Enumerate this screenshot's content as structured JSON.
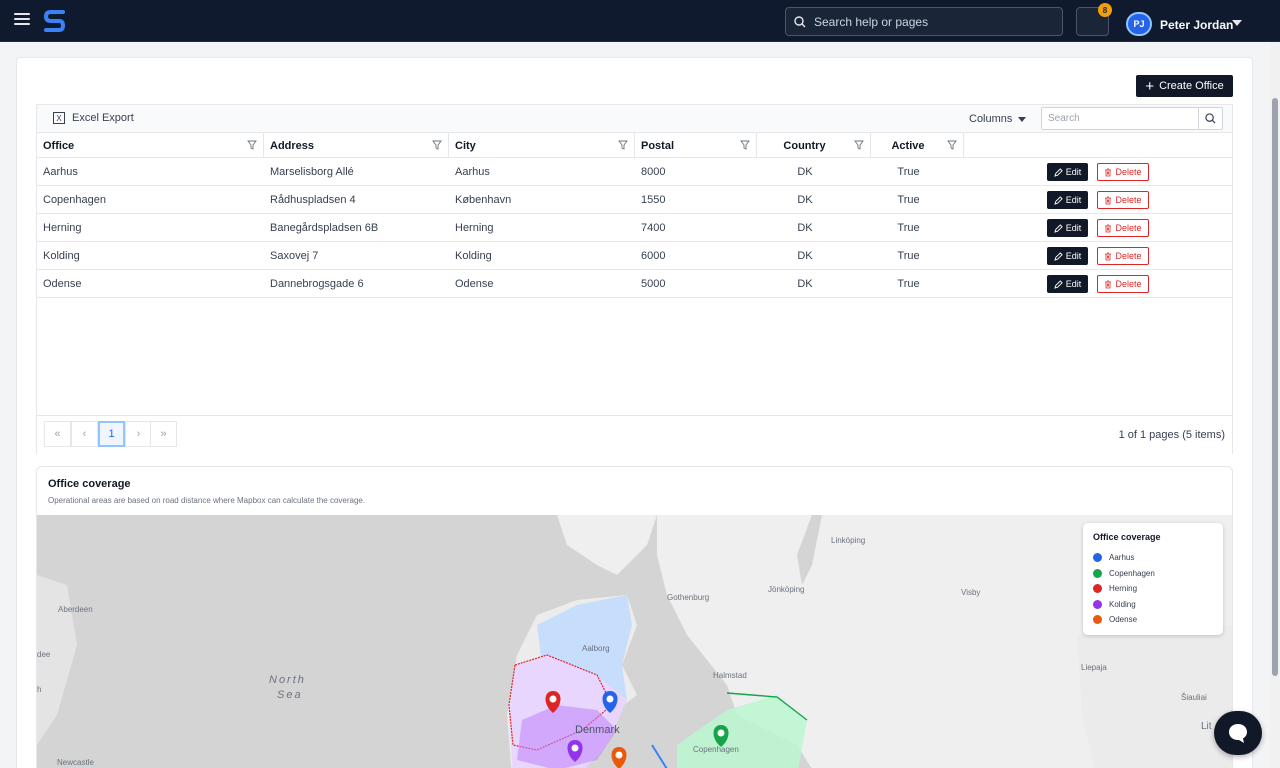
{
  "topbar": {
    "search_placeholder": "Search help or pages",
    "notification_count": "8",
    "avatar_initials": "PJ",
    "user_name": "Peter Jordan"
  },
  "actions": {
    "create_label": "Create Office"
  },
  "grid": {
    "excel_export_label": "Excel Export",
    "columns_label": "Columns",
    "search_placeholder": "Search",
    "headers": [
      "Office",
      "Address",
      "City",
      "Postal",
      "Country",
      "Active"
    ],
    "edit_label": "Edit",
    "delete_label": "Delete",
    "rows": [
      {
        "office": "Aarhus",
        "address": "Marselisborg Allé",
        "city": "Aarhus",
        "postal": "8000",
        "country": "DK",
        "active": "True"
      },
      {
        "office": "Copenhagen",
        "address": "Rådhuspladsen 4",
        "city": "København",
        "postal": "1550",
        "country": "DK",
        "active": "True"
      },
      {
        "office": "Herning",
        "address": "Banegårdspladsen 6B",
        "city": "Herning",
        "postal": "7400",
        "country": "DK",
        "active": "True"
      },
      {
        "office": "Kolding",
        "address": "Saxovej 7",
        "city": "Kolding",
        "postal": "6000",
        "country": "DK",
        "active": "True"
      },
      {
        "office": "Odense",
        "address": "Dannebrogsgade 6",
        "city": "Odense",
        "postal": "5000",
        "country": "DK",
        "active": "True"
      }
    ],
    "pager": {
      "first": "«",
      "prev": "‹",
      "current_page": "1",
      "next": "›",
      "last": "»",
      "info": "1 of 1 pages (5 items)"
    }
  },
  "coverage": {
    "title": "Office coverage",
    "subtitle": "Operational areas are based on road distance where Mapbox can calculate the coverage.",
    "legend_title": "Office coverage",
    "legend": [
      {
        "name": "Aarhus",
        "color": "#2563eb"
      },
      {
        "name": "Copenhagen",
        "color": "#16a34a"
      },
      {
        "name": "Herning",
        "color": "#dc2626"
      },
      {
        "name": "Kolding",
        "color": "#9333ea"
      },
      {
        "name": "Odense",
        "color": "#ea580c"
      }
    ],
    "map_labels": {
      "linkoping": "Linköping",
      "jonkoping": "Jönköping",
      "gothenburg": "Gothenburg",
      "visby": "Visby",
      "aberdeen": "Aberdeen",
      "dee": "dee",
      "north_sea_1": "North",
      "north_sea_2": "Sea",
      "aalborg": "Aalborg",
      "halmstad": "Halmstad",
      "liepaja": "Liepaja",
      "siauliai": "Šiauliai",
      "denmark": "Denmark",
      "copenhagen": "Copenhagen",
      "newcastle": "Newcastle",
      "lit": "Lit",
      "edge_h": "h"
    }
  }
}
